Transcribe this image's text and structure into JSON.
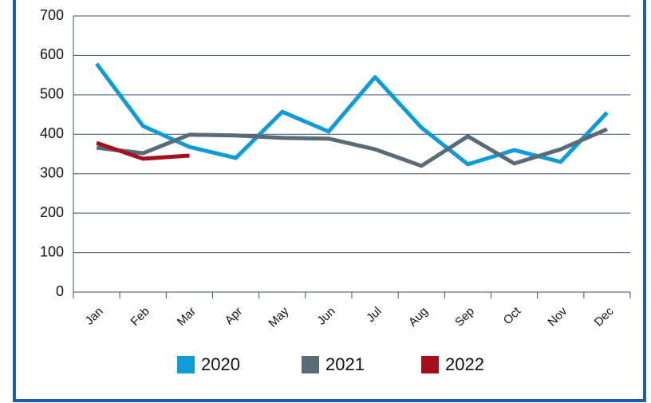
{
  "chart_data": {
    "type": "line",
    "categories": [
      "Jan",
      "Feb",
      "Mar",
      "Apr",
      "May",
      "Jun",
      "Jul",
      "Aug",
      "Sep",
      "Oct",
      "Nov",
      "Dec"
    ],
    "series": [
      {
        "name": "2020",
        "color": "#0e9bd8",
        "values": [
          579,
          421,
          368,
          340,
          457,
          407,
          545,
          417,
          324,
          360,
          330,
          455
        ]
      },
      {
        "name": "2021",
        "color": "#5a6b78",
        "values": [
          366,
          352,
          399,
          397,
          391,
          389,
          362,
          320,
          395,
          326,
          362,
          413
        ]
      },
      {
        "name": "2022",
        "color": "#a50f1c",
        "values": [
          378,
          338,
          346,
          null,
          null,
          null,
          null,
          null,
          null,
          null,
          null,
          null
        ]
      }
    ],
    "ylim": [
      0,
      700
    ],
    "yticks": [
      0,
      100,
      200,
      300,
      400,
      500,
      600,
      700
    ],
    "grid": true,
    "legend": "bottom"
  }
}
